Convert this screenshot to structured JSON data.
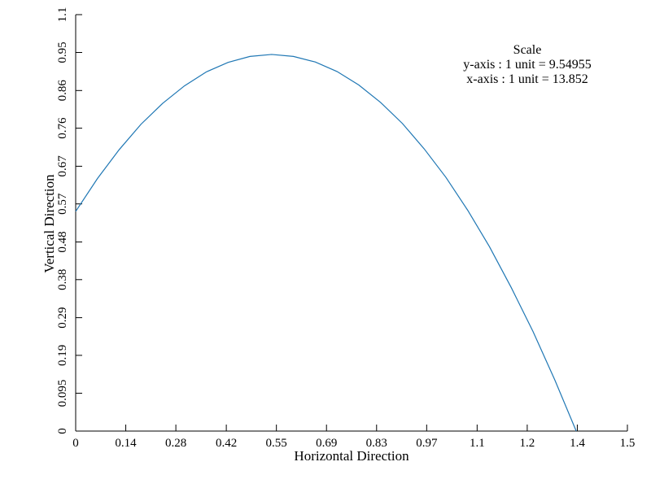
{
  "chart_data": {
    "type": "line",
    "x_label": "Horizontal Direction",
    "y_label": "Vertical Direction",
    "annotations": [
      "Scale",
      "y-axis : 1 unit = 9.54955",
      "x-axis : 1 unit = 13.852"
    ],
    "color": "#1f77b4",
    "xlim": [
      0,
      1.52
    ],
    "ylim": [
      0,
      1.0504
    ],
    "xticks": [
      0,
      {
        "value": 0.138,
        "label": "0.14"
      },
      {
        "value": 0.276,
        "label": "0.28"
      },
      {
        "value": 0.415,
        "label": "0.42"
      },
      {
        "value": 0.553,
        "label": "0.55"
      },
      {
        "value": 0.691,
        "label": "0.69"
      },
      {
        "value": 0.829,
        "label": "0.83"
      },
      {
        "value": 0.967,
        "label": "0.97"
      },
      {
        "value": 1.106,
        "label": "1.1"
      },
      {
        "value": 1.244,
        "label": "1.2"
      },
      {
        "value": 1.382,
        "label": "1.4"
      },
      {
        "value": 1.52,
        "label": "1.5"
      }
    ],
    "yticks": [
      0,
      {
        "value": 0.0955,
        "label": "0.095"
      },
      {
        "value": 0.191,
        "label": "0.19"
      },
      {
        "value": 0.286,
        "label": "0.29"
      },
      {
        "value": 0.382,
        "label": "0.38"
      },
      {
        "value": 0.477,
        "label": "0.48"
      },
      {
        "value": 0.573,
        "label": "0.57"
      },
      {
        "value": 0.668,
        "label": "0.67"
      },
      {
        "value": 0.764,
        "label": "0.76"
      },
      {
        "value": 0.859,
        "label": "0.86"
      },
      {
        "value": 0.955,
        "label": "0.95"
      },
      {
        "value": 1.0504,
        "label": "1.1"
      }
    ],
    "x": [
      0,
      0.06,
      0.12,
      0.18,
      0.24,
      0.3,
      0.36,
      0.42,
      0.48,
      0.54,
      0.6,
      0.66,
      0.72,
      0.78,
      0.84,
      0.9,
      0.96,
      1.02,
      1.08,
      1.14,
      1.2,
      1.26,
      1.32,
      1.379
    ],
    "values": [
      0.554,
      0.637,
      0.71,
      0.774,
      0.827,
      0.871,
      0.906,
      0.93,
      0.945,
      0.95,
      0.945,
      0.931,
      0.907,
      0.873,
      0.829,
      0.776,
      0.712,
      0.64,
      0.557,
      0.465,
      0.362,
      0.251,
      0.129,
      0
    ]
  }
}
